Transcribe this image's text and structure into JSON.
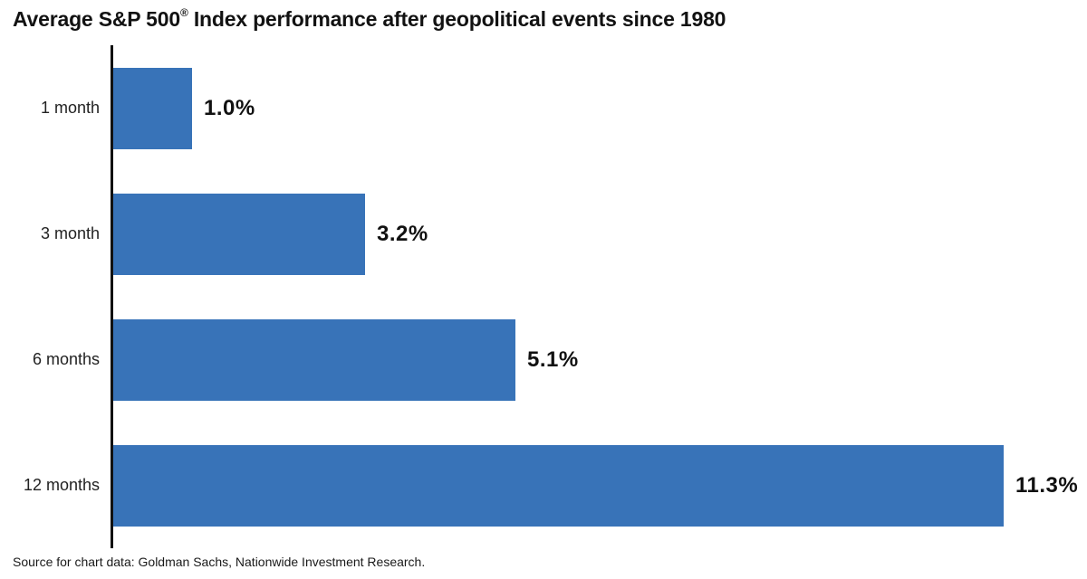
{
  "title": {
    "prefix": "Average S&P 500",
    "registered_mark": "®",
    "suffix": " Index performance after geopolitical events since 1980"
  },
  "source_note": "Source for chart data: Goldman Sachs, Nationwide Investment Research.",
  "chart_data": {
    "type": "bar",
    "orientation": "horizontal",
    "title": "Average S&P 500® Index performance after geopolitical events since 1980",
    "categories": [
      "1 month",
      "3 month",
      "6 months",
      "12 months"
    ],
    "values": [
      1.0,
      3.2,
      5.1,
      11.3
    ],
    "value_labels": [
      "1.0%",
      "3.2%",
      "5.1%",
      "11.3%"
    ],
    "unit": "%",
    "xlabel": "",
    "ylabel": "",
    "xlim": [
      0,
      12.4
    ],
    "grid": false,
    "legend": false,
    "source": "Source for chart data: Goldman Sachs, Nationwide Investment Research.",
    "colors": {
      "bar": "#3873b8",
      "axis": "#111111",
      "title_text": "#121212",
      "category_text": "#222222",
      "value_text": "#111111",
      "background": "#ffffff"
    }
  }
}
